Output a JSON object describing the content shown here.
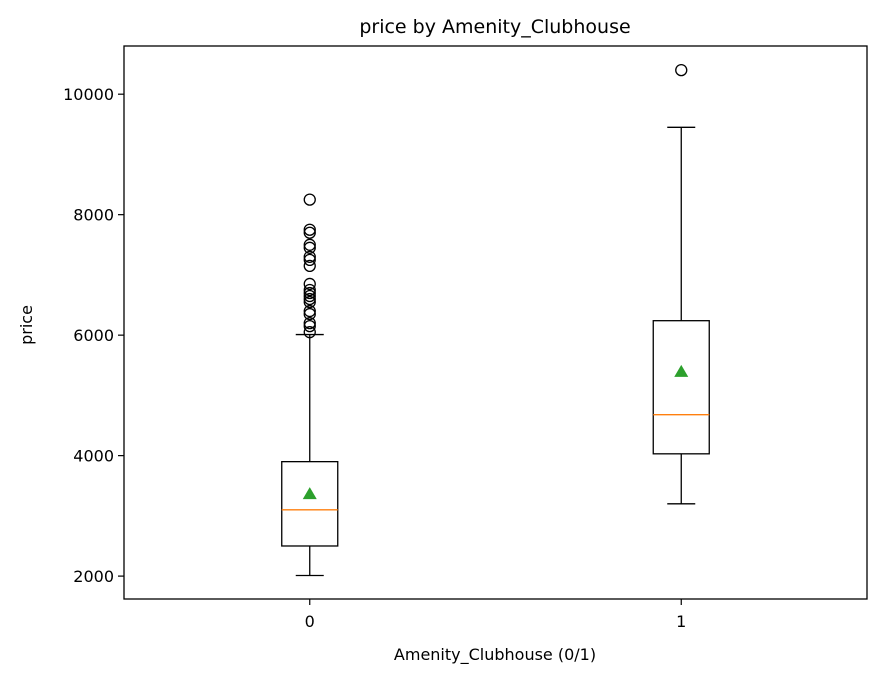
{
  "chart_data": {
    "type": "box",
    "title": "price by Amenity_Clubhouse",
    "xlabel": "Amenity_Clubhouse (0/1)",
    "ylabel": "price",
    "categories": [
      "0",
      "1"
    ],
    "ylim": [
      1620,
      10800
    ],
    "yticks": [
      2000,
      4000,
      6000,
      8000,
      10000
    ],
    "grid": false,
    "boxes": [
      {
        "category": "0",
        "whisker_low": 2010,
        "q1": 2500,
        "median": 3100,
        "q3": 3900,
        "whisker_high": 6010,
        "mean": 3360,
        "outliers": [
          6050,
          6150,
          6200,
          6350,
          6400,
          6550,
          6600,
          6650,
          6700,
          6750,
          6850,
          7150,
          7250,
          7300,
          7450,
          7500,
          7700,
          7750,
          8250
        ]
      },
      {
        "category": "1",
        "whisker_low": 3200,
        "q1": 4030,
        "median": 4680,
        "q3": 6240,
        "whisker_high": 9450,
        "mean": 5390,
        "outliers": [
          10400
        ]
      }
    ],
    "colors": {
      "box": "#000000",
      "median": "#ff7f0e",
      "mean": "#2ca02c",
      "outlier": "#000000"
    }
  }
}
